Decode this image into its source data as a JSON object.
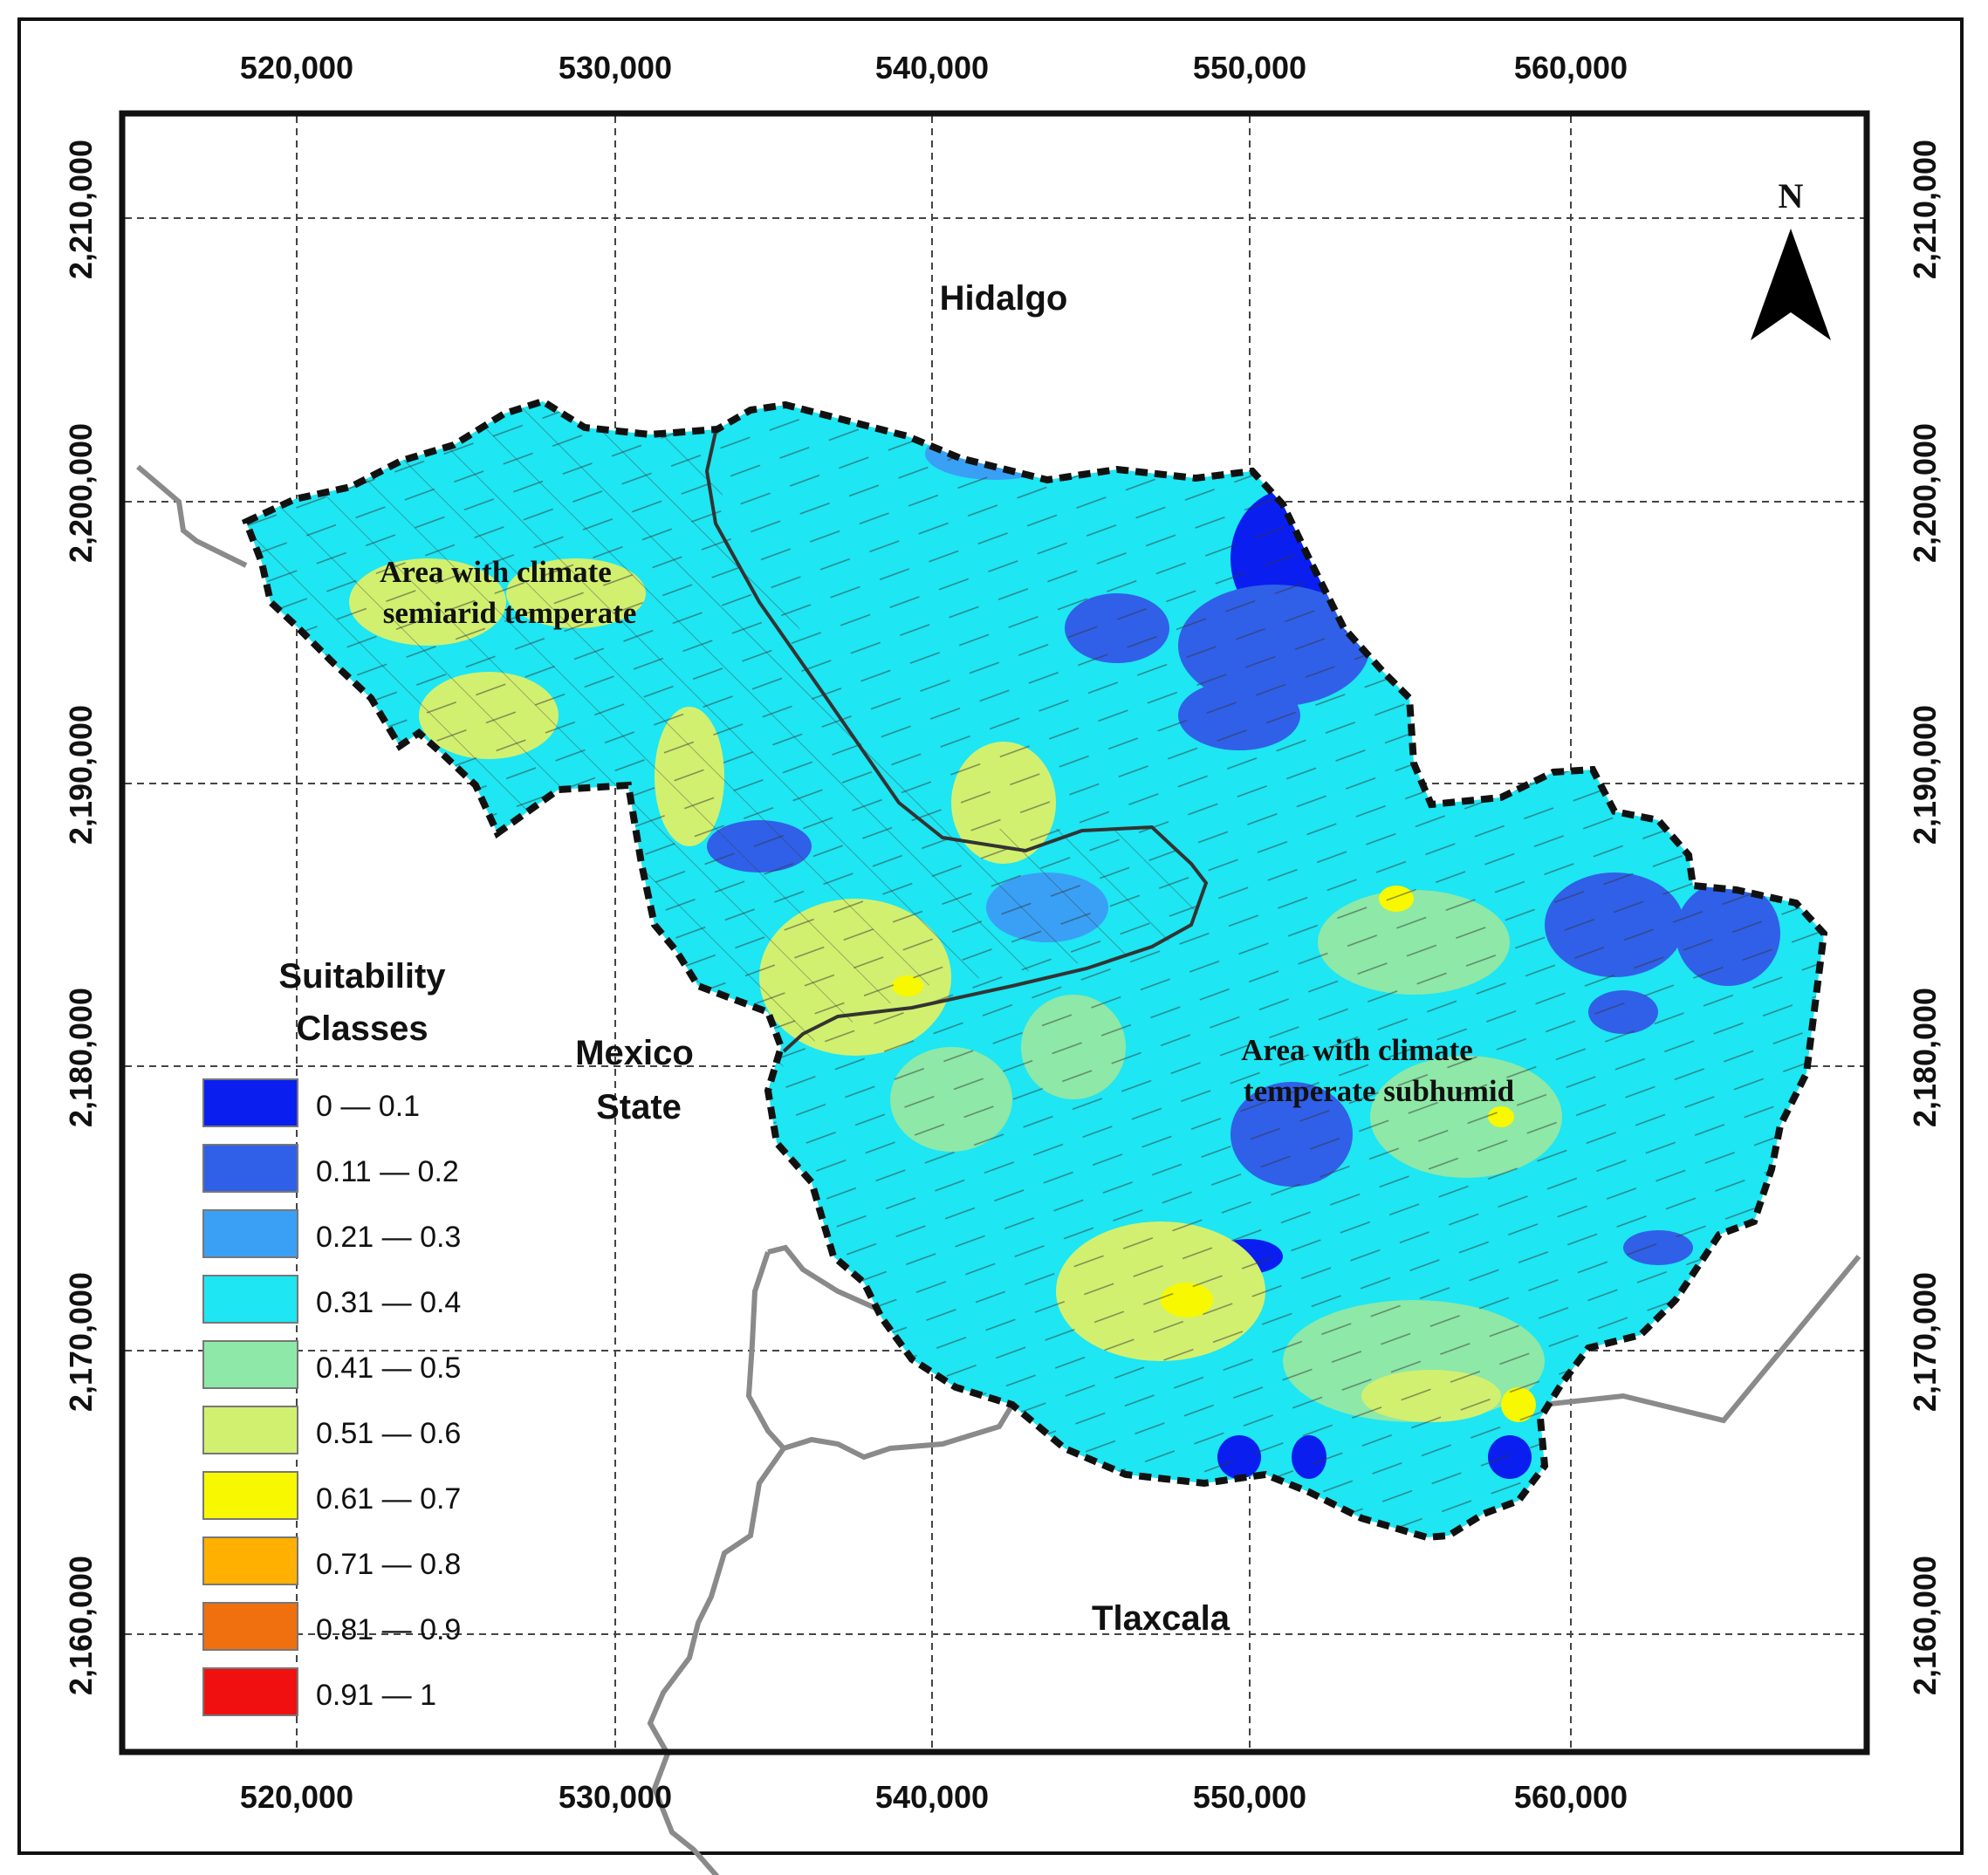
{
  "map": {
    "north_label": "N",
    "grid": {
      "x_ticks": [
        "520,000",
        "530,000",
        "540,000",
        "550,000",
        "560,000"
      ],
      "y_ticks": [
        "2,210,000",
        "2,200,000",
        "2,190,000",
        "2,180,000",
        "2,170,000",
        "2,160,000"
      ]
    },
    "states": {
      "hidalgo": "Hidalgo",
      "mexico_line1": "Mexico",
      "mexico_line2": "State",
      "tlaxcala": "Tlaxcala"
    },
    "zones": {
      "semiarid_line1": "Area with climate",
      "semiarid_line2": "semiarid temperate",
      "subhumid_line1": "Area with climate",
      "subhumid_line2": "temperate subhumid"
    },
    "legend": {
      "title_line1": "Suitability",
      "title_line2": "Classes",
      "classes": [
        {
          "label": "0 — 0.1",
          "color": "#0a1ef0"
        },
        {
          "label": "0.11 — 0.2",
          "color": "#3060e8"
        },
        {
          "label": "0.21 — 0.3",
          "color": "#3aa0f5"
        },
        {
          "label": "0.31 — 0.4",
          "color": "#1ee6f2"
        },
        {
          "label": "0.41 — 0.5",
          "color": "#8ee8a8"
        },
        {
          "label": "0.51 — 0.6",
          "color": "#d2f070"
        },
        {
          "label": "0.61 — 0.7",
          "color": "#f8f800"
        },
        {
          "label": "0.71 — 0.8",
          "color": "#ffb000"
        },
        {
          "label": "0.81 — 0.9",
          "color": "#f07010"
        },
        {
          "label": "0.91 — 1",
          "color": "#f01010"
        }
      ]
    }
  }
}
